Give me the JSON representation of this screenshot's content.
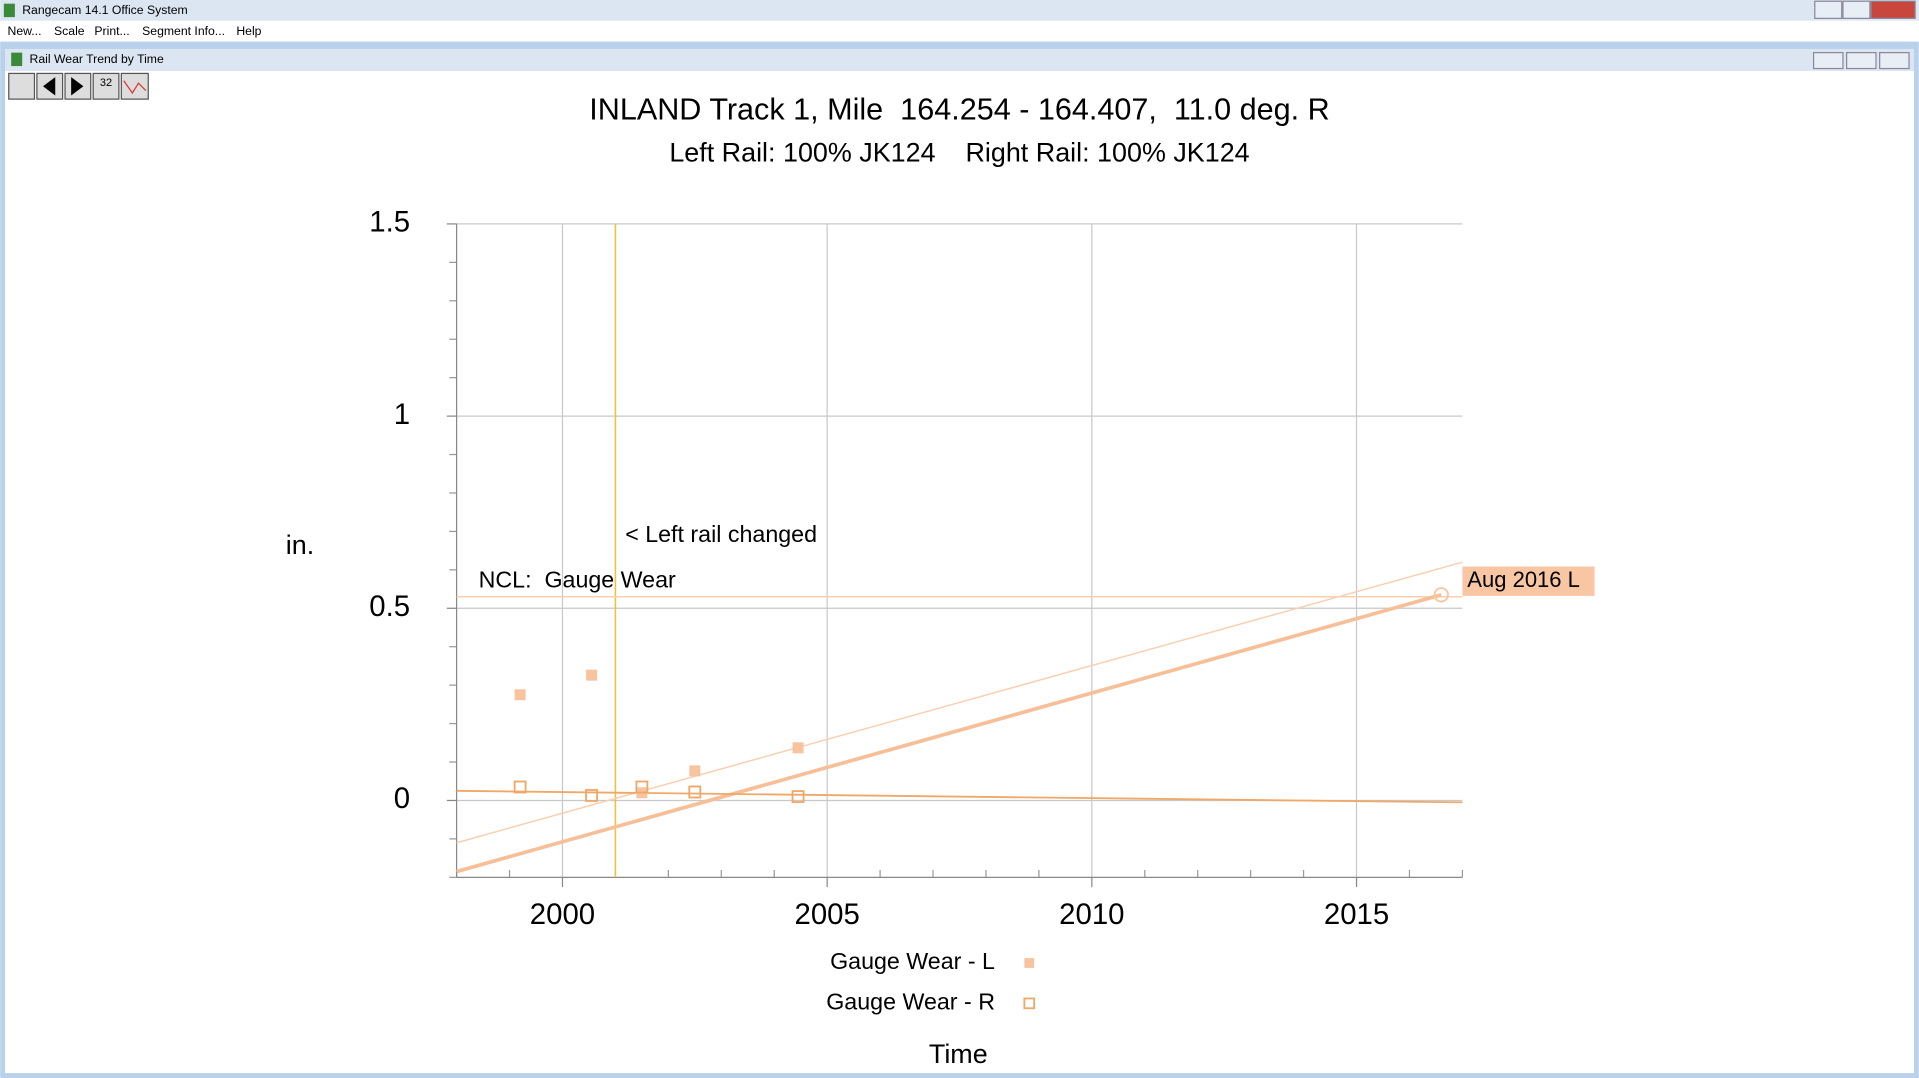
{
  "window": {
    "title": "Rangecam 14.1 Office System",
    "menu": [
      "New...",
      "Scale",
      "Print...",
      "Segment Info...",
      "Help"
    ],
    "child_title": "Rail Wear Trend by Time",
    "toolbar_label": "32"
  },
  "chart_data": {
    "type": "scatter",
    "title": "INLAND Track 1, Mile  164.254 - 164.407,  11.0 deg. R",
    "subtitle": "Left Rail: 100% JK124    Right Rail: 100% JK124",
    "x_label": "Time",
    "y_label": "in.",
    "xlim": [
      1998,
      2017
    ],
    "ylim": [
      -0.2,
      1.5
    ],
    "xticks": [
      2000,
      2005,
      2010,
      2015
    ],
    "yticks": [
      0,
      0.5,
      1,
      1.5
    ],
    "xminor": [
      1998,
      1999,
      2001,
      2002,
      2003,
      2004,
      2006,
      2007,
      2008,
      2009,
      2011,
      2012,
      2013,
      2014,
      2016,
      2017
    ],
    "yminor": [
      -0.2,
      -0.1,
      0.1,
      0.2,
      0.3,
      0.4,
      0.6,
      0.7,
      0.8,
      0.9,
      1.1,
      1.2,
      1.3,
      1.4
    ],
    "grid": true,
    "legend": "bottom",
    "series": [
      {
        "name": "Gauge Wear - L",
        "color": "#f8c4a0",
        "marker": "filled-square",
        "x": [
          1999.2,
          2000.55,
          2001.5,
          2002.5,
          2004.45
        ],
        "values": [
          0.275,
          0.326,
          0.02,
          0.077,
          0.137
        ]
      },
      {
        "name": "Gauge Wear - R",
        "color": "#f0a868",
        "marker": "open-square",
        "x": [
          1999.2,
          2000.55,
          2001.5,
          2002.5,
          2004.45
        ],
        "values": [
          0.035,
          0.013,
          0.035,
          0.022,
          0.01
        ]
      }
    ],
    "trend_lines": [
      {
        "color": "#f7bf98",
        "width": 3,
        "x": [
          1998,
          2016.6
        ],
        "values": [
          -0.185,
          0.535
        ]
      },
      {
        "color": "#f9cfb0",
        "width": 1.2,
        "x": [
          1998,
          2017
        ],
        "values": [
          -0.11,
          0.62
        ]
      },
      {
        "color": "#f0a868",
        "width": 1.5,
        "x": [
          1998,
          2017
        ],
        "values": [
          0.025,
          -0.005
        ]
      }
    ],
    "vline": {
      "x": 2001,
      "color": "#f2c040",
      "text": "< Left rail changed"
    },
    "ncl": {
      "value": 0.53,
      "color": "#f9cfb0",
      "text": "NCL:  Gauge Wear"
    },
    "callout": {
      "text": "Aug 2016 L",
      "x": 2016.6,
      "y": 0.535,
      "color": "#f9c6a4"
    }
  }
}
